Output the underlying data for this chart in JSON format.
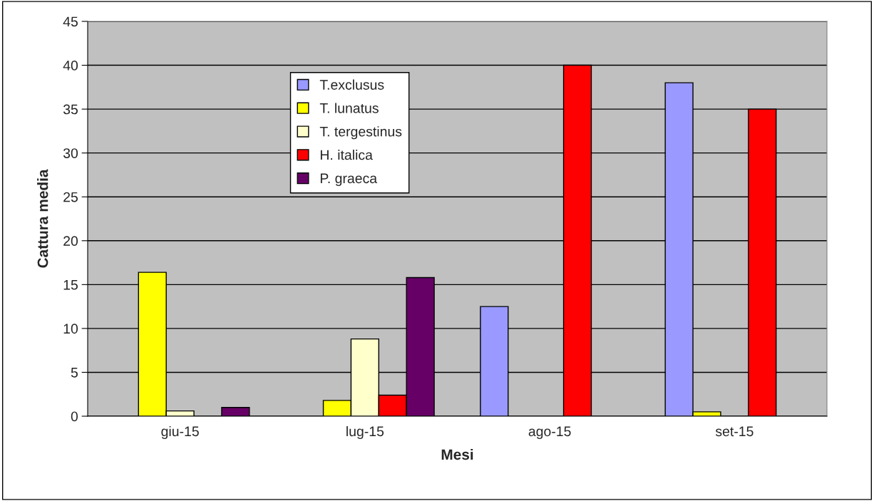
{
  "chart_data": {
    "type": "bar",
    "xlabel": "Mesi",
    "ylabel": "Cattura media",
    "categories": [
      "giu-15",
      "lug-15",
      "ago-15",
      "set-15"
    ],
    "series": [
      {
        "name": "T.exclusus",
        "color": "#9999ff",
        "values": [
          null,
          null,
          12.5,
          38
        ]
      },
      {
        "name": "T. lunatus",
        "color": "#ffff00",
        "values": [
          16.4,
          1.8,
          null,
          0.5
        ]
      },
      {
        "name": "T. tergestinus",
        "color": "#ffffcc",
        "values": [
          0.6,
          8.8,
          null,
          null
        ]
      },
      {
        "name": "H. italica",
        "color": "#ff0000",
        "values": [
          null,
          2.4,
          40,
          35
        ]
      },
      {
        "name": "P. graeca",
        "color": "#660066",
        "values": [
          1.0,
          15.8,
          null,
          null
        ]
      }
    ],
    "ylim": [
      0,
      45
    ],
    "yticks": [
      0,
      5,
      10,
      15,
      20,
      25,
      30,
      35,
      40,
      45
    ],
    "grid": "y",
    "legend": "top left"
  }
}
